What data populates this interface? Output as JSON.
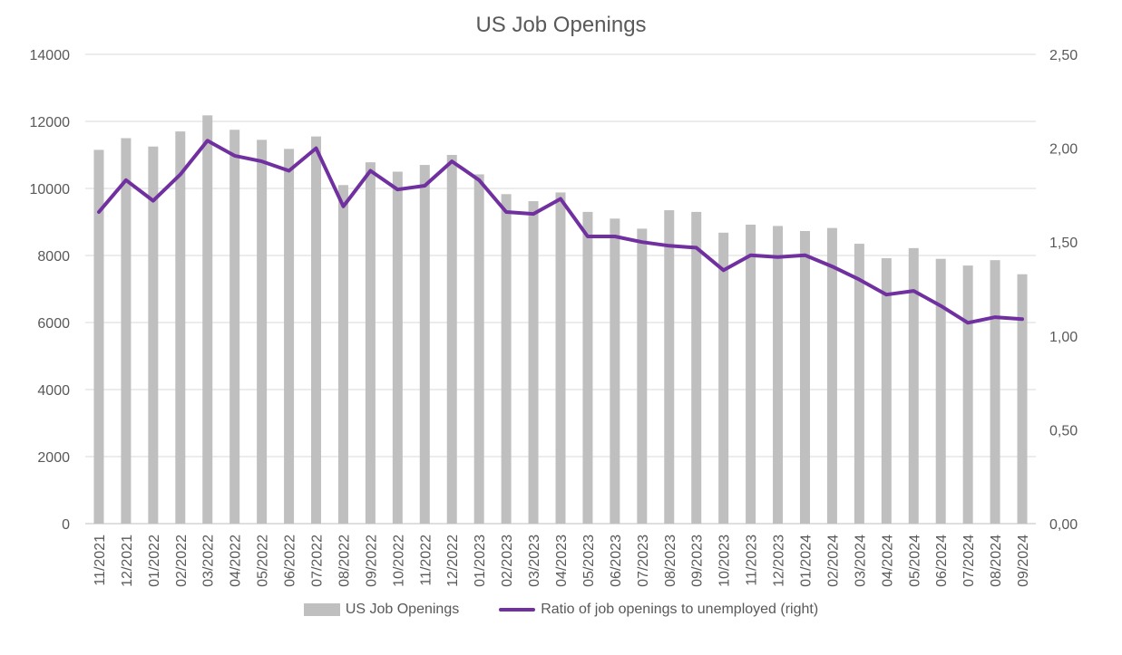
{
  "chart_data": {
    "type": "bar",
    "title": "US Job Openings",
    "categories": [
      "11/2021",
      "12/2021",
      "01/2022",
      "02/2022",
      "03/2022",
      "04/2022",
      "05/2022",
      "06/2022",
      "07/2022",
      "08/2022",
      "09/2022",
      "10/2022",
      "11/2022",
      "12/2022",
      "01/2023",
      "02/2023",
      "03/2023",
      "04/2023",
      "05/2023",
      "06/2023",
      "07/2023",
      "08/2023",
      "09/2023",
      "10/2023",
      "11/2023",
      "12/2023",
      "01/2024",
      "02/2024",
      "03/2024",
      "04/2024",
      "05/2024",
      "06/2024",
      "07/2024",
      "08/2024",
      "09/2024"
    ],
    "series": [
      {
        "name": "US Job Openings",
        "type": "bar",
        "axis": "left",
        "color": "#bfbfbf",
        "values": [
          11150,
          11500,
          11250,
          11700,
          12180,
          11750,
          11450,
          11180,
          11550,
          10100,
          10780,
          10500,
          10700,
          11000,
          10420,
          9830,
          9620,
          9880,
          9300,
          9100,
          8800,
          9350,
          9300,
          8680,
          8920,
          8880,
          8730,
          8820,
          8350,
          7920,
          8220,
          7900,
          7700,
          7860,
          7440
        ]
      },
      {
        "name": "Ratio of job openings to unemployed (right)",
        "type": "line",
        "axis": "right",
        "color": "#7030a0",
        "values": [
          1.66,
          1.83,
          1.72,
          1.86,
          2.04,
          1.96,
          1.93,
          1.88,
          2.0,
          1.69,
          1.88,
          1.78,
          1.8,
          1.93,
          1.83,
          1.66,
          1.65,
          1.73,
          1.53,
          1.53,
          1.5,
          1.48,
          1.47,
          1.35,
          1.43,
          1.42,
          1.43,
          1.37,
          1.3,
          1.22,
          1.24,
          1.16,
          1.07,
          1.1,
          1.09
        ]
      }
    ],
    "y_left": {
      "ylim": [
        0,
        14000
      ],
      "ticks": [
        "0",
        "2000",
        "4000",
        "6000",
        "8000",
        "10000",
        "12000",
        "14000"
      ]
    },
    "y_right": {
      "ylim": [
        0,
        2.5
      ],
      "ticks": [
        "0,00",
        "0,50",
        "1,00",
        "1,50",
        "2,00",
        "2,50"
      ]
    },
    "grid": true,
    "legend_position": "bottom"
  }
}
